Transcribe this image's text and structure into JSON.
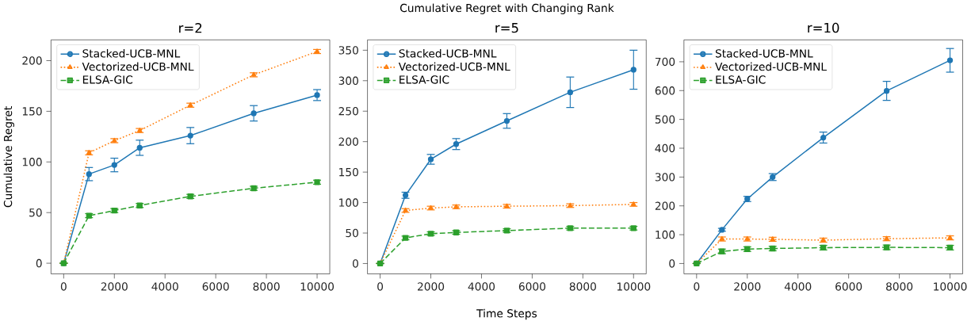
{
  "chart_data": [
    {
      "type": "line",
      "title": "r=2",
      "ylabel": "Cumulative Regret",
      "x": [
        0,
        1000,
        2000,
        3000,
        5000,
        7500,
        10000
      ],
      "xlim": [
        -500,
        10500
      ],
      "xticks": [
        0,
        2000,
        4000,
        6000,
        8000,
        10000
      ],
      "ylim": [
        -10.5,
        220.5
      ],
      "yticks": [
        0,
        50,
        100,
        150,
        200
      ],
      "legend": "top left",
      "grid": false,
      "series": [
        {
          "name": "Stacked-UCB-MNL",
          "color": "#1f77b4",
          "marker": "circle",
          "line_style": "solid",
          "values": [
            0,
            88,
            97,
            114,
            126,
            148,
            166
          ],
          "errors": [
            null,
            6.5,
            6.7,
            7.5,
            8,
            7.6,
            5.4
          ]
        },
        {
          "name": "Vectorized-UCB-MNL",
          "color": "#ff7f0e",
          "marker": "triangle",
          "line_style": "dotted",
          "values": [
            0,
            109,
            121,
            131,
            156,
            186,
            209
          ],
          "errors": [
            null,
            2,
            2,
            2,
            2,
            2,
            2
          ]
        },
        {
          "name": "ELSA-GIC",
          "color": "#2ca02c",
          "marker": "square",
          "line_style": "dashed",
          "values": [
            0,
            47,
            52,
            57,
            66,
            74,
            80
          ],
          "errors": [
            null,
            2,
            2,
            2,
            2,
            2,
            2
          ]
        }
      ]
    },
    {
      "type": "line",
      "title": "r=5",
      "xlabel": "Time Steps",
      "annotations": [
        "Cumulative Regret with Changing Rank"
      ],
      "x": [
        0,
        1000,
        2000,
        3000,
        5000,
        7500,
        10000
      ],
      "xlim": [
        -500,
        10500
      ],
      "xticks": [
        0,
        2000,
        4000,
        6000,
        8000,
        10000
      ],
      "ylim": [
        -17,
        367
      ],
      "yticks": [
        0,
        50,
        100,
        150,
        200,
        250,
        300,
        350
      ],
      "legend": "top left",
      "grid": false,
      "series": [
        {
          "name": "Stacked-UCB-MNL",
          "color": "#1f77b4",
          "marker": "circle",
          "line_style": "solid",
          "values": [
            0,
            112,
            171,
            196,
            234,
            281,
            318
          ],
          "errors": [
            null,
            5,
            8,
            9,
            12,
            25,
            32
          ]
        },
        {
          "name": "Vectorized-UCB-MNL",
          "color": "#ff7f0e",
          "marker": "triangle",
          "line_style": "dotted",
          "values": [
            0,
            87,
            91,
            93,
            94,
            95,
            97
          ],
          "errors": [
            null,
            3,
            3,
            3,
            3,
            3,
            3
          ]
        },
        {
          "name": "ELSA-GIC",
          "color": "#2ca02c",
          "marker": "square",
          "line_style": "dashed",
          "values": [
            0,
            42,
            49,
            51,
            54,
            58,
            58
          ],
          "errors": [
            null,
            3,
            3,
            3,
            3,
            3,
            3
          ]
        }
      ]
    },
    {
      "type": "line",
      "title": "r=10",
      "x": [
        0,
        1000,
        2000,
        3000,
        5000,
        7500,
        10000
      ],
      "xlim": [
        -500,
        10500
      ],
      "xticks": [
        0,
        2000,
        4000,
        6000,
        8000,
        10000
      ],
      "ylim": [
        -36,
        776
      ],
      "yticks": [
        0,
        100,
        200,
        300,
        400,
        500,
        600,
        700
      ],
      "legend": "top left",
      "grid": false,
      "series": [
        {
          "name": "Stacked-UCB-MNL",
          "color": "#1f77b4",
          "marker": "circle",
          "line_style": "solid",
          "values": [
            0,
            117,
            224,
            300,
            437,
            599,
            705
          ],
          "errors": [
            null,
            5,
            9,
            12,
            19,
            33,
            41
          ]
        },
        {
          "name": "Vectorized-UCB-MNL",
          "color": "#ff7f0e",
          "marker": "triangle",
          "line_style": "dotted",
          "values": [
            0,
            85,
            85,
            84,
            81,
            86,
            89
          ],
          "errors": [
            null,
            7,
            7,
            7,
            7,
            7,
            7
          ]
        },
        {
          "name": "ELSA-GIC",
          "color": "#2ca02c",
          "marker": "square",
          "line_style": "dashed",
          "values": [
            0,
            42,
            50,
            52,
            55,
            56,
            55
          ],
          "errors": [
            null,
            8,
            8,
            8,
            8,
            8,
            8
          ]
        }
      ]
    }
  ]
}
